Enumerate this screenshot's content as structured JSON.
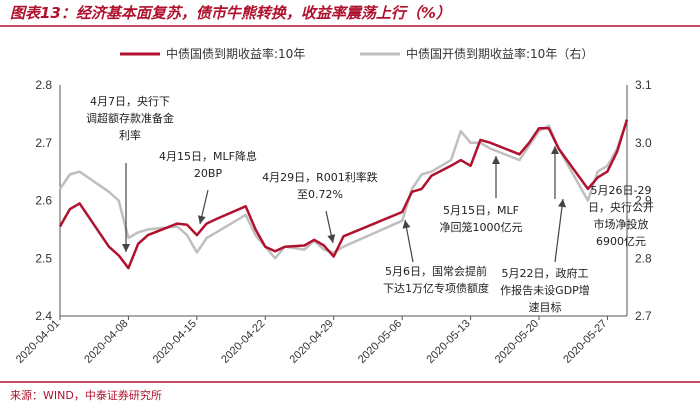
{
  "chart_data": {
    "type": "line",
    "title": "图表13：经济基本面复苏，债市牛熊转换，收益率震荡上行（%）",
    "source": "来源：WIND，中泰证券研究所",
    "x_tick_labels": [
      "2020-04-01",
      "2020-04-08",
      "2020-04-15",
      "2020-04-22",
      "2020-04-29",
      "2020-05-06",
      "2020-05-13",
      "2020-05-20",
      "2020-05-27"
    ],
    "y_left": {
      "ticks": [
        "2.4",
        "2.5",
        "2.6",
        "2.7",
        "2.8"
      ],
      "range": [
        2.4,
        2.8
      ]
    },
    "y_right": {
      "ticks": [
        "2.7",
        "2.8",
        "2.9",
        "3.0",
        "3.1"
      ],
      "range": [
        2.7,
        3.1
      ]
    },
    "series": [
      {
        "name": "中债国债到期收益率:10年",
        "axis": "left",
        "color": "#b0122e",
        "dates": [
          "2020-04-01",
          "2020-04-02",
          "2020-04-03",
          "2020-04-06",
          "2020-04-07",
          "2020-04-08",
          "2020-04-09",
          "2020-04-10",
          "2020-04-13",
          "2020-04-14",
          "2020-04-15",
          "2020-04-16",
          "2020-04-17",
          "2020-04-20",
          "2020-04-21",
          "2020-04-22",
          "2020-04-23",
          "2020-04-24",
          "2020-04-26",
          "2020-04-27",
          "2020-04-28",
          "2020-04-29",
          "2020-04-30",
          "2020-05-06",
          "2020-05-07",
          "2020-05-08",
          "2020-05-09",
          "2020-05-11",
          "2020-05-12",
          "2020-05-13",
          "2020-05-14",
          "2020-05-15",
          "2020-05-18",
          "2020-05-19",
          "2020-05-20",
          "2020-05-21",
          "2020-05-22",
          "2020-05-25",
          "2020-05-26",
          "2020-05-27",
          "2020-05-28",
          "2020-05-29"
        ],
        "values": [
          2.555,
          2.585,
          2.595,
          2.52,
          2.505,
          2.483,
          2.525,
          2.54,
          2.56,
          2.558,
          2.54,
          2.56,
          2.568,
          2.59,
          2.55,
          2.52,
          2.512,
          2.52,
          2.522,
          2.532,
          2.522,
          2.503,
          2.538,
          2.58,
          2.615,
          2.62,
          2.643,
          2.66,
          2.67,
          2.66,
          2.705,
          2.7,
          2.68,
          2.7,
          2.725,
          2.725,
          2.69,
          2.62,
          2.64,
          2.65,
          2.685,
          2.74
        ]
      },
      {
        "name": "中债国开债到期收益率:10年（右）",
        "axis": "right",
        "color": "#bfbfbf",
        "dates": [
          "2020-04-01",
          "2020-04-02",
          "2020-04-03",
          "2020-04-06",
          "2020-04-07",
          "2020-04-08",
          "2020-04-09",
          "2020-04-10",
          "2020-04-13",
          "2020-04-14",
          "2020-04-15",
          "2020-04-16",
          "2020-04-17",
          "2020-04-20",
          "2020-04-21",
          "2020-04-22",
          "2020-04-23",
          "2020-04-24",
          "2020-04-26",
          "2020-04-27",
          "2020-04-28",
          "2020-04-29",
          "2020-04-30",
          "2020-05-06",
          "2020-05-07",
          "2020-05-08",
          "2020-05-09",
          "2020-05-11",
          "2020-05-12",
          "2020-05-13",
          "2020-05-14",
          "2020-05-15",
          "2020-05-18",
          "2020-05-19",
          "2020-05-20",
          "2020-05-21",
          "2020-05-22",
          "2020-05-25",
          "2020-05-26",
          "2020-05-27",
          "2020-05-28",
          "2020-05-29"
        ],
        "values": [
          2.92,
          2.945,
          2.95,
          2.915,
          2.9,
          2.835,
          2.845,
          2.85,
          2.855,
          2.84,
          2.81,
          2.835,
          2.845,
          2.875,
          2.84,
          2.82,
          2.8,
          2.82,
          2.815,
          2.83,
          2.815,
          2.81,
          2.82,
          2.865,
          2.92,
          2.945,
          2.95,
          2.97,
          3.02,
          3.0,
          3.0,
          2.99,
          2.97,
          2.995,
          3.02,
          3.03,
          2.99,
          2.9,
          2.95,
          2.96,
          2.99,
          3.04
        ]
      }
    ],
    "annotations": [
      {
        "lines": [
          "4月7日，央行下",
          "调超额存款准备金",
          "利率"
        ]
      },
      {
        "lines": [
          "4月15日，MLF降息",
          "20BP"
        ]
      },
      {
        "lines": [
          "4月29日，R001利率跌",
          "至0.72%"
        ]
      },
      {
        "lines": [
          "5月6日，国常会提前",
          "下达1万亿专项债额度"
        ]
      },
      {
        "lines": [
          "5月15日，MLF",
          "净回笼1000亿元"
        ]
      },
      {
        "lines": [
          "5月22日，政府工",
          "作报告未设GDP增",
          "速目标"
        ]
      },
      {
        "lines": [
          "5月26日-29",
          "日，央行公开",
          "市场净投放",
          "6900亿元"
        ]
      }
    ],
    "grid": false,
    "legend": "top"
  }
}
